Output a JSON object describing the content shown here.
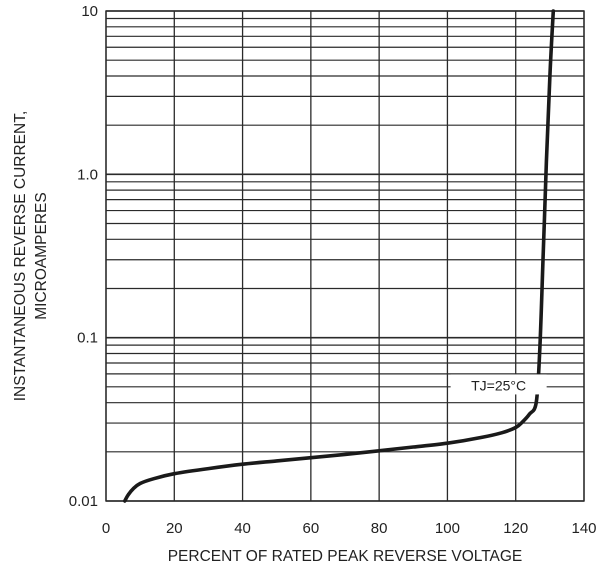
{
  "chart_data": {
    "type": "line",
    "title": "",
    "xlabel": "PERCENT OF RATED PEAK REVERSE VOLTAGE",
    "ylabel_lines": [
      "INSTANTANEOUS  REVERSE CURRENT,",
      "MICROAMPERES"
    ],
    "x_scale": "linear",
    "y_scale": "log",
    "xlim": [
      0,
      140
    ],
    "ylim": [
      0.01,
      10
    ],
    "x_ticks": [
      0,
      20,
      40,
      60,
      80,
      100,
      120,
      140
    ],
    "x_tick_labels": [
      "0",
      "20",
      "40",
      "60",
      "80",
      "100",
      "120",
      "140"
    ],
    "y_ticks": [
      0.01,
      0.1,
      1,
      10
    ],
    "y_tick_labels": [
      "0.01",
      "0.1",
      "1.0",
      "10"
    ],
    "grid": true,
    "series": [
      {
        "x": [
          5.5,
          6.5,
          8,
          10,
          14,
          20,
          30,
          40,
          50,
          60,
          70,
          80,
          90,
          100,
          110,
          116,
          120,
          122,
          124,
          126,
          127,
          128,
          129,
          130,
          131
        ],
        "y": [
          0.01,
          0.0109,
          0.0119,
          0.0128,
          0.0137,
          0.0147,
          0.0158,
          0.0168,
          0.0176,
          0.0184,
          0.0193,
          0.0203,
          0.0214,
          0.0226,
          0.0245,
          0.0262,
          0.0282,
          0.0305,
          0.034,
          0.04,
          0.08,
          0.3,
          1.2,
          4.0,
          10
        ]
      }
    ],
    "annotations": [
      {
        "text": "TJ=25°C",
        "x": 115,
        "y": 0.051
      }
    ],
    "line_color": "#1a1a1a",
    "grid_color": "#2a2a2a"
  }
}
